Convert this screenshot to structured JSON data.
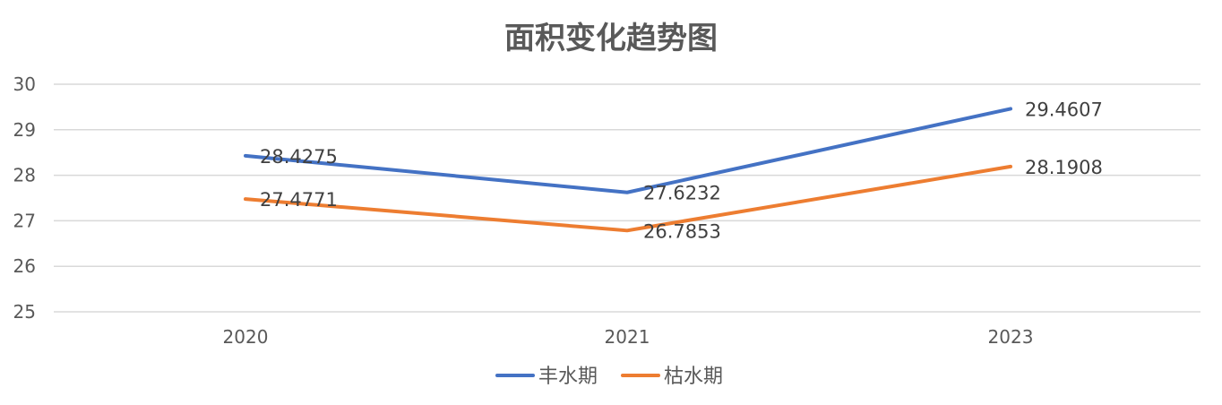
{
  "chart_data": {
    "type": "line",
    "title": "面积变化趋势图",
    "categories": [
      "2020",
      "2021",
      "2023"
    ],
    "series": [
      {
        "name": "丰水期",
        "color": "#4472C4",
        "values": [
          28.4275,
          27.6232,
          29.4607
        ],
        "labels": [
          "28.4275",
          "27.6232",
          "29.4607"
        ]
      },
      {
        "name": "枯水期",
        "color": "#ED7D31",
        "values": [
          27.4771,
          26.7853,
          28.1908
        ],
        "labels": [
          "27.4771",
          "26.7853",
          "28.1908"
        ]
      }
    ],
    "ylim": [
      25,
      30
    ],
    "yticks": [
      "25",
      "26",
      "27",
      "28",
      "29",
      "30"
    ],
    "grid": true,
    "legend_position": "bottom"
  }
}
